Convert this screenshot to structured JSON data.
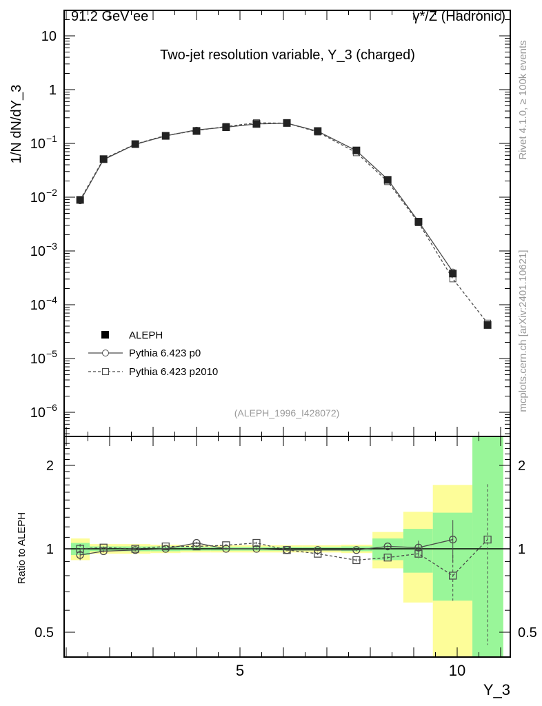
{
  "header": {
    "left": "91.2 GeV ee",
    "right": "γ*/Z (Hadronic)"
  },
  "side_text": {
    "rivet": "Rivet 4.1.0, ≥ 100k events",
    "mcplots": "mcplots.cern.ch [arXiv:2401.10621]"
  },
  "chart_data": [
    {
      "type": "line",
      "title": "Two-jet resolution variable, Y_3 (charged)",
      "annotation": "(ALEPH_1996_I428072)",
      "ylabel": "1/N  dN/dY_3",
      "xlabel": "Y_3",
      "yscale": "log",
      "ylim": [
        3.5e-07,
        30
      ],
      "xlim": [
        0.95,
        11.2
      ],
      "yticks": [
        {
          "v": 10,
          "label": "10"
        },
        {
          "v": 1,
          "label": "1"
        },
        {
          "v": 0.1,
          "label": "10",
          "exp": "−1"
        },
        {
          "v": 0.01,
          "label": "10",
          "exp": "−2"
        },
        {
          "v": 0.001,
          "label": "10",
          "exp": "−3"
        },
        {
          "v": 0.0001,
          "label": "10",
          "exp": "−4"
        },
        {
          "v": 1e-05,
          "label": "10",
          "exp": "−5"
        },
        {
          "v": 1e-06,
          "label": "10",
          "exp": "−6"
        }
      ],
      "x": [
        1.32,
        1.86,
        2.59,
        3.29,
        4.0,
        4.68,
        5.38,
        6.08,
        6.79,
        7.68,
        8.4,
        9.11,
        9.9,
        10.7
      ],
      "bin_edges": [
        1.11,
        1.54,
        2.22,
        2.94,
        3.63,
        4.33,
        5.03,
        5.73,
        6.43,
        7.33,
        8.05,
        8.76,
        9.44,
        10.35,
        11.06
      ],
      "series": [
        {
          "name": "ALEPH",
          "style": "data",
          "values": [
            0.0089,
            0.051,
            0.097,
            0.138,
            0.17,
            0.2,
            0.23,
            0.24,
            0.17,
            0.074,
            0.021,
            0.0035,
            0.00038,
            4.2e-05
          ]
        },
        {
          "name": "Pythia 6.423 p0",
          "style": "solid-circle",
          "ratio": [
            0.95,
            0.98,
            0.99,
            1.0,
            1.05,
            1.0,
            1.0,
            0.99,
            0.99,
            0.99,
            1.02,
            1.01,
            1.08,
            null
          ],
          "ratio_err": [
            0.04,
            0.01,
            0.01,
            0.01,
            0.01,
            0.01,
            0.01,
            0.01,
            0.01,
            0.01,
            0.01,
            0.06,
            0.19,
            null
          ]
        },
        {
          "name": "Pythia 6.423 p2010",
          "style": "dashed-square",
          "ratio": [
            1.0,
            1.01,
            1.0,
            1.02,
            1.02,
            1.03,
            1.05,
            0.99,
            0.96,
            0.91,
            0.93,
            0.96,
            0.8,
            1.08
          ],
          "ratio_err": [
            0.04,
            0.01,
            0.01,
            0.01,
            0.01,
            0.01,
            0.01,
            0.01,
            0.01,
            0.01,
            0.01,
            0.04,
            0.15,
            0.63
          ]
        }
      ],
      "legend_position": "lower-left"
    },
    {
      "type": "line",
      "ylabel": "Ratio to ALEPH",
      "xlabel": "Y_3",
      "yscale": "log",
      "ylim": [
        0.41,
        2.54
      ],
      "yticks": [
        {
          "v": 2,
          "label": "2"
        },
        {
          "v": 1,
          "label": "1"
        },
        {
          "v": 0.5,
          "label": "0.5"
        }
      ],
      "xticks": [
        {
          "v": 5,
          "label": "5"
        },
        {
          "v": 10,
          "label": "10"
        }
      ],
      "band_green": [
        0.05,
        0.02,
        0.02,
        0.02,
        0.015,
        0.015,
        0.015,
        0.015,
        0.015,
        0.02,
        0.09,
        0.18,
        0.35,
        2
      ],
      "band_yellow": [
        0.09,
        0.04,
        0.04,
        0.035,
        0.03,
        0.03,
        0.03,
        0.03,
        0.03,
        0.035,
        0.15,
        0.36,
        0.7,
        2
      ],
      "colors": {
        "green": "#99f699",
        "yellow": "#fdfd99",
        "line": "#4a4a4a"
      }
    }
  ]
}
